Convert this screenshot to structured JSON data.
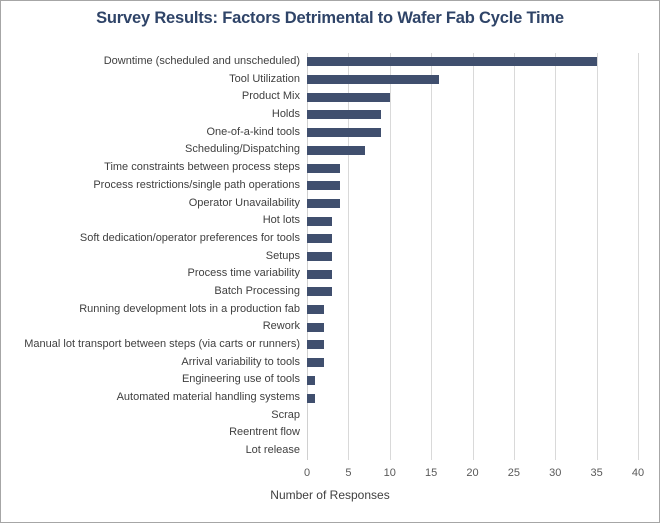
{
  "chart_data": {
    "type": "bar",
    "orientation": "horizontal",
    "title": "Survey Results: Factors Detrimental to Wafer Fab Cycle Time",
    "xlabel": "Number of Responses",
    "xlim": [
      0,
      40
    ],
    "xticks": [
      0,
      5,
      10,
      15,
      20,
      25,
      30,
      35,
      40
    ],
    "grid": true,
    "legend": false,
    "categories": [
      "Downtime (scheduled and unscheduled)",
      "Tool Utilization",
      "Product Mix",
      "Holds",
      "One-of-a-kind tools",
      "Scheduling/Dispatching",
      "Time constraints between process steps",
      "Process restrictions/single path operations",
      "Operator Unavailability",
      "Hot lots",
      "Soft dedication/operator preferences for tools",
      "Setups",
      "Process time variability",
      "Batch Processing",
      "Running development lots in a production fab",
      "Rework",
      "Manual lot transport between steps (via carts or runners)",
      "Arrival variability to tools",
      "Engineering use of tools",
      "Automated material handling systems",
      "Scrap",
      "Reentrent flow",
      "Lot release"
    ],
    "values": [
      35,
      16,
      10,
      9,
      9,
      7,
      4,
      4,
      4,
      3,
      3,
      3,
      3,
      3,
      2,
      2,
      2,
      2,
      1,
      1,
      0,
      0,
      0
    ],
    "colors": {
      "bar": "#404F6E",
      "gridline": "#D9D9D9",
      "axis_line": "#D0D0D0",
      "title": "#2F4468",
      "category_label": "#3F3F3F",
      "tick_label": "#595959",
      "axis_title": "#404040",
      "background": "#FFFFFF",
      "frame_border": "#A6A6A6"
    }
  }
}
